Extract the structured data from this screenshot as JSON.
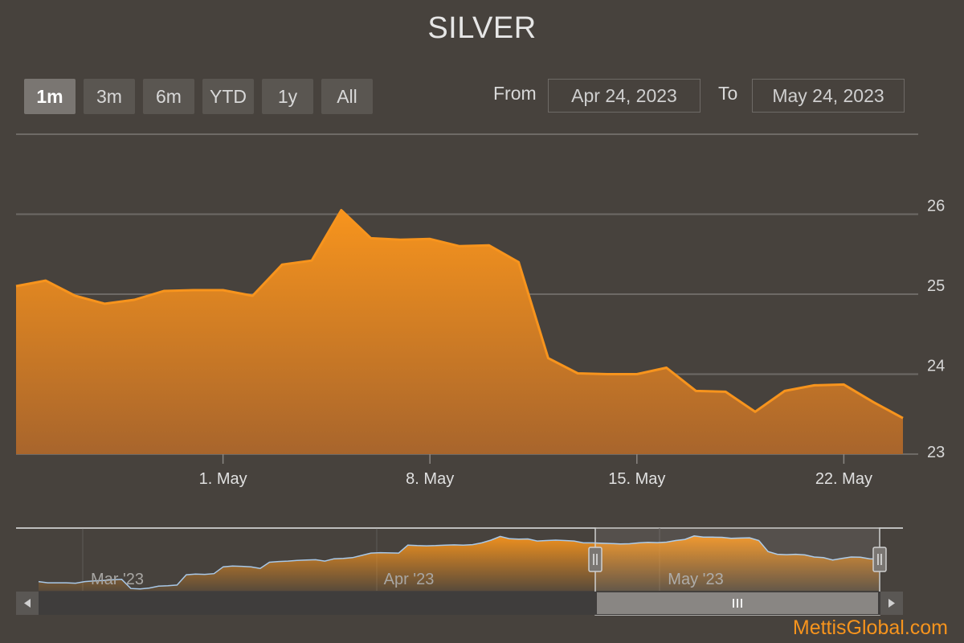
{
  "chart_data": {
    "type": "area",
    "title": "SILVER",
    "range_buttons": [
      "1m",
      "3m",
      "6m",
      "YTD",
      "1y",
      "All"
    ],
    "selected_range": "1m",
    "range_inputs": {
      "from_label": "From",
      "from_value": "Apr 24, 2023",
      "to_label": "To",
      "to_value": "May 24, 2023"
    },
    "x": [
      "2023-04-24",
      "2023-04-25",
      "2023-04-26",
      "2023-04-27",
      "2023-04-28",
      "2023-04-29",
      "2023-04-30",
      "2023-05-01",
      "2023-05-02",
      "2023-05-03",
      "2023-05-04",
      "2023-05-05",
      "2023-05-06",
      "2023-05-07",
      "2023-05-08",
      "2023-05-09",
      "2023-05-10",
      "2023-05-11",
      "2023-05-12",
      "2023-05-13",
      "2023-05-14",
      "2023-05-15",
      "2023-05-16",
      "2023-05-17",
      "2023-05-18",
      "2023-05-19",
      "2023-05-20",
      "2023-05-21",
      "2023-05-22",
      "2023-05-23",
      "2023-05-24"
    ],
    "series": [
      {
        "values": [
          25.1,
          25.17,
          24.98,
          24.88,
          24.93,
          25.04,
          25.05,
          25.05,
          24.98,
          25.37,
          25.42,
          26.05,
          25.7,
          25.68,
          25.69,
          25.6,
          25.61,
          25.4,
          24.2,
          24.01,
          24.0,
          24.0,
          24.08,
          23.79,
          23.78,
          23.53,
          23.79,
          23.86,
          23.87,
          23.65,
          23.45
        ],
        "color": "#f7941d"
      }
    ],
    "x_ticks": [
      "1. May",
      "8. May",
      "15. May",
      "22. May"
    ],
    "y_ticks": [
      23,
      24,
      25,
      26
    ],
    "ylim": [
      23,
      27
    ],
    "grid": true,
    "y_axis_side": "right",
    "navigator": {
      "labels": [
        "Mar '23",
        "Apr '23",
        "May '23"
      ],
      "values": [
        22.9,
        22.85,
        22.85,
        22.85,
        22.83,
        22.9,
        22.93,
        22.95,
        22.98,
        23.0,
        22.6,
        22.58,
        22.62,
        22.7,
        22.72,
        22.75,
        23.2,
        23.23,
        23.22,
        23.25,
        23.55,
        23.58,
        23.57,
        23.55,
        23.48,
        23.75,
        23.78,
        23.8,
        23.83,
        23.85,
        23.86,
        23.8,
        23.9,
        23.92,
        23.95,
        24.05,
        24.15,
        24.17,
        24.16,
        24.15,
        24.5,
        24.48,
        24.47,
        24.48,
        24.5,
        24.51,
        24.5,
        24.52,
        24.6,
        24.72,
        24.88,
        24.78,
        24.76,
        24.77,
        24.68,
        24.7,
        24.72,
        24.7,
        24.68,
        24.6,
        24.6,
        24.58,
        24.57,
        24.55,
        24.56,
        24.6,
        24.62,
        24.61,
        24.63,
        24.7,
        24.75,
        24.9,
        24.85,
        24.85,
        24.84,
        24.8,
        24.81,
        24.82,
        24.7,
        24.22,
        24.1,
        24.08,
        24.1,
        24.07,
        23.98,
        23.95,
        23.85,
        23.92,
        23.98,
        23.97,
        23.9,
        23.88
      ],
      "colors": {
        "line": "#a8c8e8",
        "fill": "#f7941d"
      }
    }
  },
  "watermark": "MettisGlobal.com",
  "colors": {
    "background": "#47423d",
    "accent": "#f7941d",
    "grid": "#6e6a66",
    "button": "#5a5651",
    "button_active": "#7a7672"
  }
}
